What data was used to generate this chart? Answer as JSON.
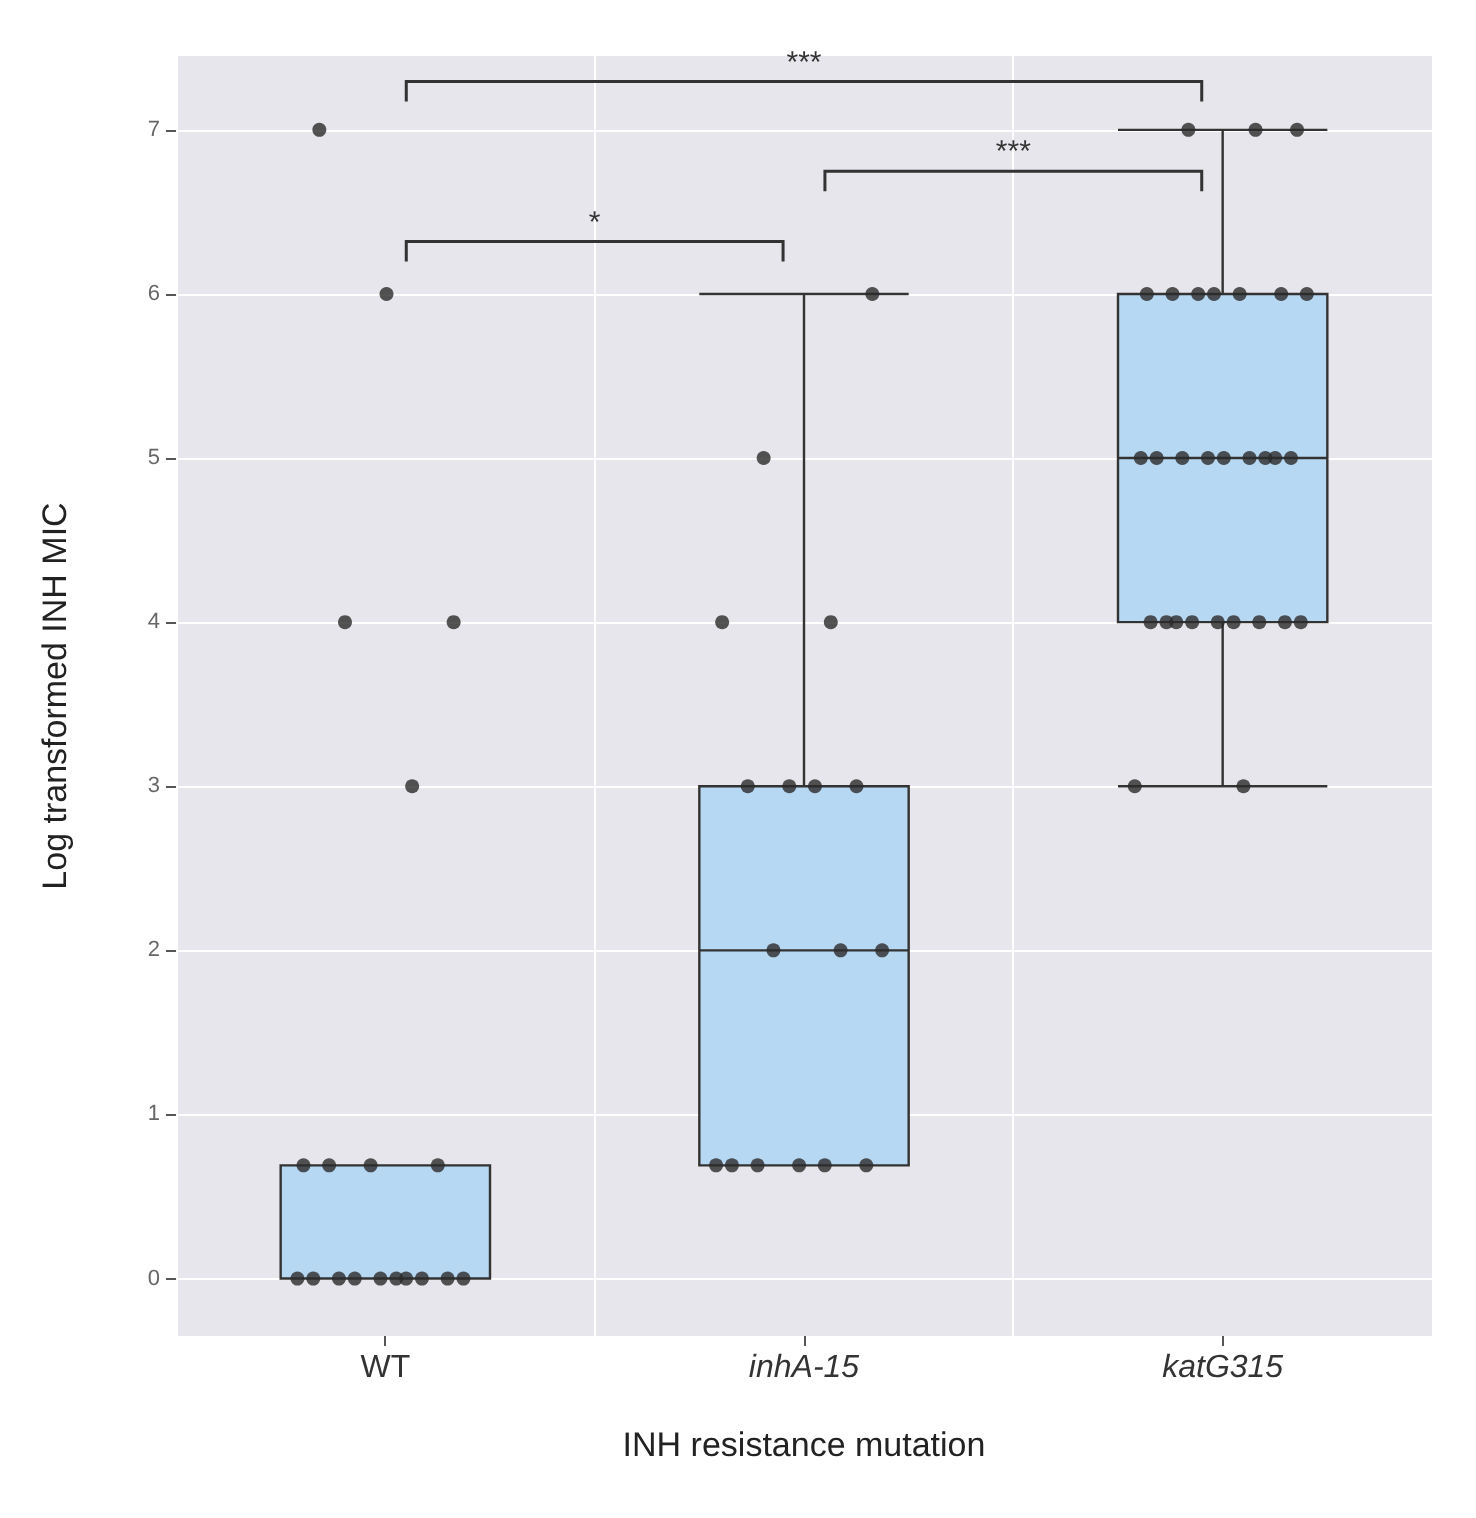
{
  "chart_data": {
    "type": "box",
    "xlabel": "INH resistance mutation",
    "ylabel": "Log transformed INH MIC",
    "categories": [
      "WT",
      "inhA-15",
      "katG315"
    ],
    "boxes": [
      {
        "low": 0,
        "q1": 0,
        "median": 0,
        "q3": 0.69,
        "high": 0.69
      },
      {
        "low": 0.69,
        "q1": 0.69,
        "median": 2,
        "q3": 3,
        "high": 6
      },
      {
        "low": 3,
        "q1": 4,
        "median": 5,
        "q3": 6,
        "high": 7
      }
    ],
    "color": "#b7d8f2",
    "series": [
      {
        "type": "scatter",
        "color": "#2b2b2b",
        "x": [
          "WT",
          "WT",
          "WT",
          "WT",
          "WT",
          "WT",
          "WT",
          "WT",
          "WT",
          "WT",
          "WT",
          "WT",
          "WT",
          "WT",
          "WT",
          "WT",
          "WT",
          "WT",
          "WT",
          "inhA-15",
          "inhA-15",
          "inhA-15",
          "inhA-15",
          "inhA-15",
          "inhA-15",
          "inhA-15",
          "inhA-15",
          "inhA-15",
          "inhA-15",
          "inhA-15",
          "inhA-15",
          "inhA-15",
          "inhA-15",
          "inhA-15",
          "inhA-15",
          "inhA-15",
          "katG315",
          "katG315",
          "katG315",
          "katG315",
          "katG315",
          "katG315",
          "katG315",
          "katG315",
          "katG315",
          "katG315",
          "katG315",
          "katG315",
          "katG315",
          "katG315",
          "katG315",
          "katG315",
          "katG315",
          "katG315",
          "katG315",
          "katG315",
          "katG315",
          "katG315",
          "katG315",
          "katG315",
          "katG315",
          "katG315",
          "katG315",
          "katG315",
          "katG315",
          "katG315"
        ],
        "values": [
          0,
          0,
          0,
          0,
          0,
          0,
          0,
          0,
          0,
          0,
          0.69,
          0.69,
          0.69,
          0.69,
          3,
          4,
          4,
          6,
          7,
          0.69,
          0.69,
          0.69,
          0.69,
          0.69,
          0.69,
          2,
          2,
          2,
          3,
          3,
          3,
          3,
          4,
          4,
          5,
          6,
          3,
          3,
          4,
          4,
          4,
          4,
          4,
          4,
          4,
          4,
          4,
          5,
          5,
          5,
          5,
          5,
          5,
          5,
          5,
          5,
          6,
          6,
          6,
          6,
          6,
          6,
          6,
          7,
          7,
          7
        ]
      }
    ],
    "ylim": [
      -0.35,
      7.45
    ],
    "yticks": [
      0,
      1,
      2,
      3,
      4,
      5,
      6,
      7
    ],
    "grid": true,
    "marker": "circle",
    "annotations": [
      "*",
      "***",
      "***"
    ]
  }
}
